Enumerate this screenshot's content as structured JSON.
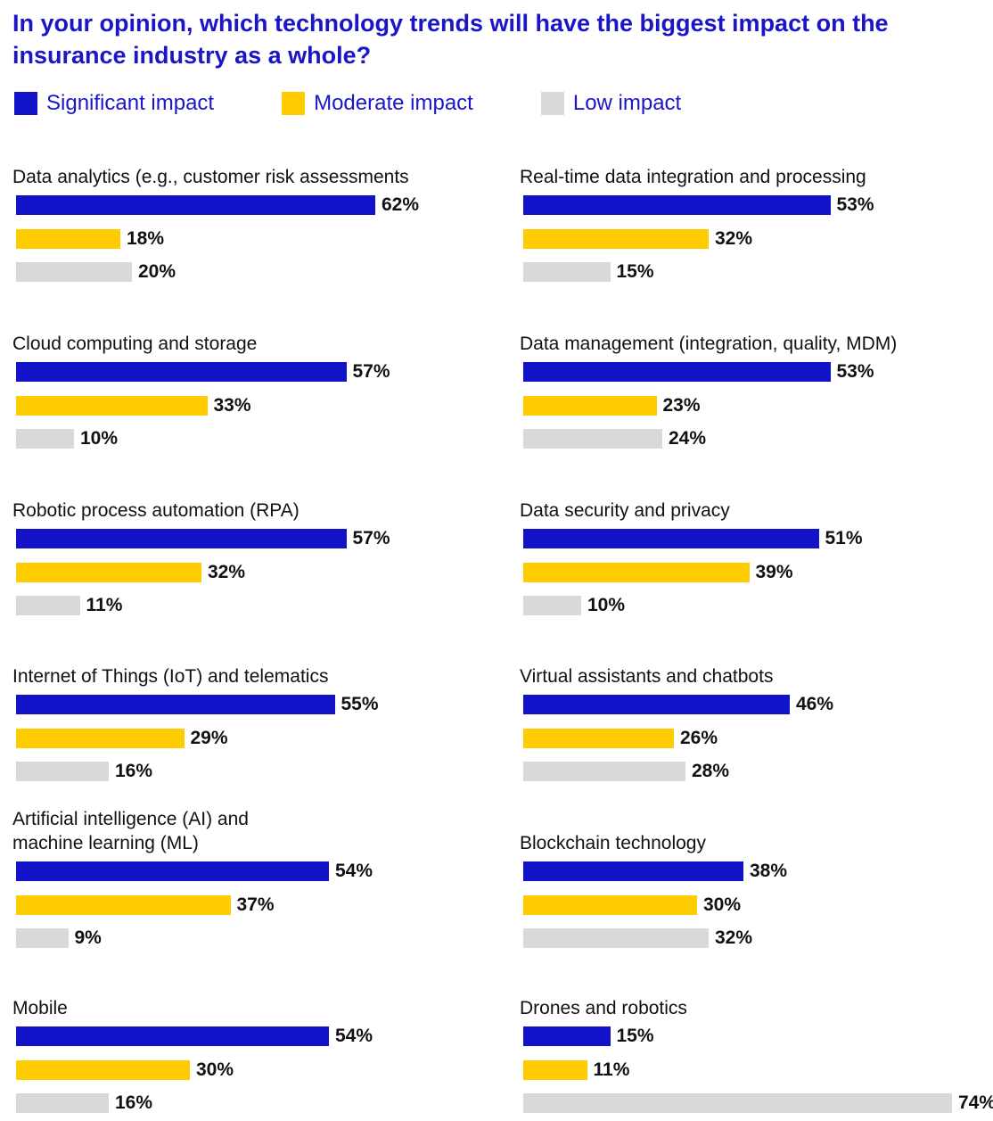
{
  "title": "In your opinion, which technology trends will have the biggest impact on the insurance industry as a whole?",
  "colors": {
    "significant": "#1212c8",
    "moderate": "#ffcc00",
    "low": "#d9d9d9",
    "title": "#1a16c8"
  },
  "legend": [
    {
      "label": "Significant impact",
      "color": "#1212c8"
    },
    {
      "label": "Moderate impact",
      "color": "#ffcc00"
    },
    {
      "label": "Low impact",
      "color": "#d9d9d9"
    }
  ],
  "chart_data": {
    "type": "bar",
    "orientation": "horizontal",
    "value_unit": "%",
    "series_names": [
      "Significant impact",
      "Moderate impact",
      "Low impact"
    ],
    "panels": [
      {
        "label": "Data analytics (e.g., customer risk assessments",
        "values": [
          62,
          18,
          20
        ]
      },
      {
        "label": "Real-time data integration and processing",
        "values": [
          53,
          32,
          15
        ]
      },
      {
        "label": "Cloud computing and storage",
        "values": [
          57,
          33,
          10
        ]
      },
      {
        "label": "Data management (integration, quality, MDM)",
        "values": [
          53,
          23,
          24
        ]
      },
      {
        "label": "Robotic process automation (RPA)",
        "values": [
          57,
          32,
          11
        ]
      },
      {
        "label": "Data security and privacy",
        "values": [
          51,
          39,
          10
        ]
      },
      {
        "label": "Internet of Things (IoT) and telematics",
        "values": [
          55,
          29,
          16
        ]
      },
      {
        "label": "Virtual assistants and chatbots",
        "values": [
          46,
          26,
          28
        ]
      },
      {
        "label": "Artificial intelligence (AI) and machine learning (ML)",
        "values": [
          54,
          37,
          9
        ]
      },
      {
        "label": "Blockchain technology",
        "values": [
          38,
          30,
          32
        ]
      },
      {
        "label": "Mobile",
        "values": [
          54,
          30,
          16
        ]
      },
      {
        "label": "Drones and robotics",
        "values": [
          15,
          11,
          74
        ]
      }
    ]
  }
}
